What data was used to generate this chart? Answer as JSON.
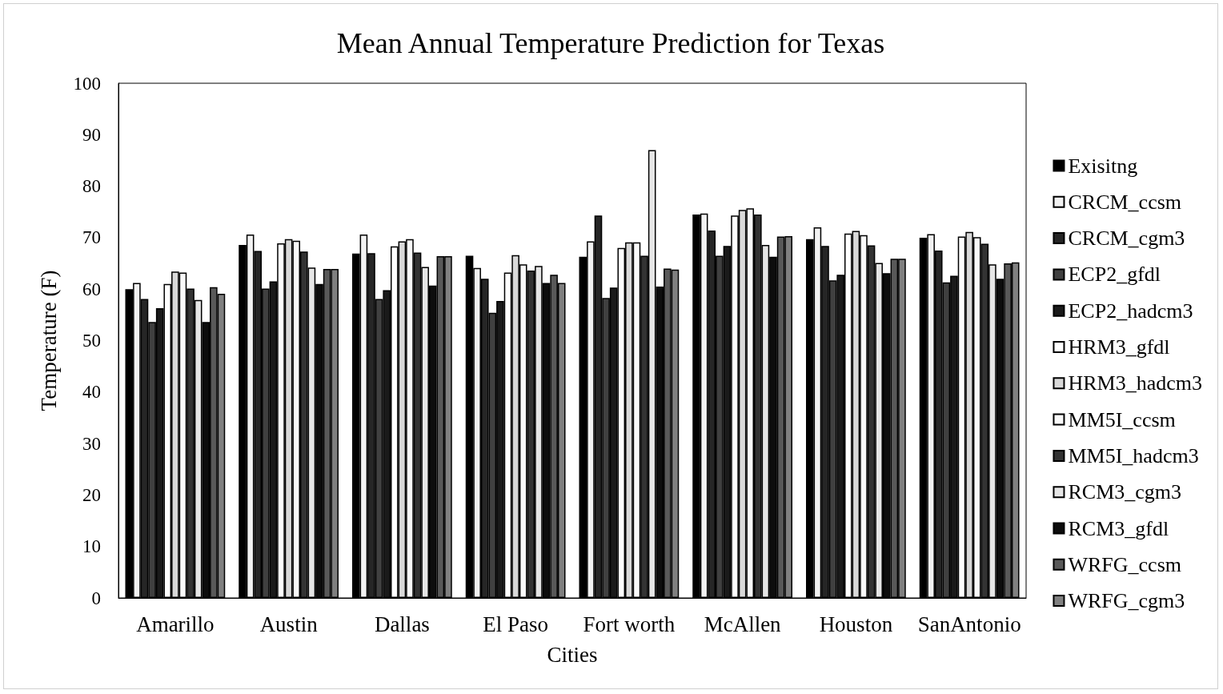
{
  "chart_data": {
    "type": "bar",
    "title": "Mean Annual Temperature Prediction for Texas",
    "xlabel": "Cities",
    "ylabel": "Temperature (F)",
    "categories": [
      "Amarillo",
      "Austin",
      "Dallas",
      "El Paso",
      "Fort worth",
      "McAllen",
      "Houston",
      "SanAntonio"
    ],
    "series": [
      {
        "name": "Exisitng",
        "color": "#000000",
        "values": [
          60.0,
          68.6,
          66.9,
          66.5,
          66.3,
          74.5,
          69.7,
          70.0
        ]
      },
      {
        "name": "CRCM_ccsm",
        "color": "#f2f2f2",
        "values": [
          61.2,
          70.6,
          70.6,
          64.1,
          69.3,
          74.7,
          72.0,
          70.7
        ]
      },
      {
        "name": "CRCM_cgm3",
        "color": "#262626",
        "values": [
          58.1,
          67.4,
          67.0,
          62.0,
          74.3,
          71.4,
          68.4,
          67.5
        ]
      },
      {
        "name": "ECP2_gfdl",
        "color": "#404040",
        "values": [
          53.6,
          60.1,
          58.1,
          55.4,
          58.3,
          66.5,
          61.7,
          61.3
        ]
      },
      {
        "name": "ECP2_hadcm3",
        "color": "#1a1a1a",
        "values": [
          56.3,
          61.5,
          59.8,
          57.7,
          60.3,
          68.4,
          62.8,
          62.6
        ]
      },
      {
        "name": "HRM3_gfdl",
        "color": "#ffffff",
        "values": [
          61.0,
          68.9,
          68.3,
          63.2,
          68.0,
          74.3,
          70.8,
          70.2
        ]
      },
      {
        "name": "HRM3_hadcm3",
        "color": "#d9d9d9",
        "values": [
          63.4,
          69.7,
          69.3,
          66.6,
          69.1,
          75.4,
          71.3,
          71.1
        ]
      },
      {
        "name": "MM5I_ccsm",
        "color": "#fafafa",
        "values": [
          63.2,
          69.4,
          69.7,
          64.8,
          69.1,
          75.7,
          70.5,
          70.1
        ]
      },
      {
        "name": "MM5I_hadcm3",
        "color": "#333333",
        "values": [
          60.1,
          67.3,
          67.1,
          63.6,
          66.5,
          74.5,
          68.5,
          68.8
        ]
      },
      {
        "name": "RCM3_cgm3",
        "color": "#e6e6e6",
        "values": [
          57.9,
          64.2,
          64.3,
          64.5,
          87.0,
          68.6,
          65.1,
          64.8
        ]
      },
      {
        "name": "RCM3_gfdl",
        "color": "#0d0d0d",
        "values": [
          53.6,
          61.0,
          60.7,
          61.2,
          60.5,
          66.3,
          63.1,
          62.0
        ]
      },
      {
        "name": "WRFG_ccsm",
        "color": "#595959",
        "values": [
          60.4,
          63.9,
          66.4,
          62.8,
          64.0,
          70.2,
          65.9,
          65.0
        ]
      },
      {
        "name": "WRFG_cgm3",
        "color": "#808080",
        "values": [
          59.1,
          63.9,
          66.4,
          61.2,
          63.8,
          70.3,
          65.9,
          65.2
        ]
      }
    ],
    "ylim": [
      0,
      100
    ],
    "yticks": [
      0,
      10,
      20,
      30,
      40,
      50,
      60,
      70,
      80,
      90,
      100
    ],
    "grid": false,
    "legend": "right"
  }
}
